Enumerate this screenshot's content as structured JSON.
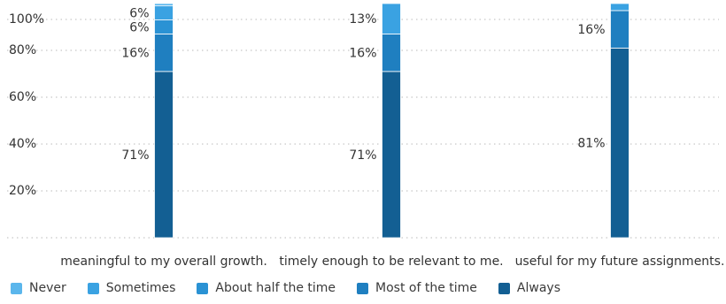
{
  "chart_data": {
    "type": "bar",
    "stacked": true,
    "orientation": "vertical",
    "categories": [
      "meaningful to my overall growth.",
      "timely enough to be relevant to me.",
      "useful for my future assignments."
    ],
    "series": [
      {
        "name": "Always",
        "color": "#135f93",
        "values": [
          71,
          71,
          81
        ]
      },
      {
        "name": "Most of the time",
        "color": "#1f7fc0",
        "values": [
          16,
          16,
          16
        ]
      },
      {
        "name": "About half the time",
        "color": "#2a92d4",
        "values": [
          6,
          0,
          0
        ]
      },
      {
        "name": "Sometimes",
        "color": "#3aa2e2",
        "values": [
          6,
          13,
          3
        ]
      },
      {
        "name": "Never",
        "color": "#5bb6ec",
        "values": [
          1,
          0,
          0
        ]
      }
    ],
    "data_labels": [
      {
        "category": 0,
        "series": "Always",
        "text": "71%"
      },
      {
        "category": 0,
        "series": "Most of the time",
        "text": "16%"
      },
      {
        "category": 0,
        "series": "About half the time",
        "text": "6%"
      },
      {
        "category": 0,
        "series": "Sometimes",
        "text": "6%"
      },
      {
        "category": 1,
        "series": "Always",
        "text": "71%"
      },
      {
        "category": 1,
        "series": "Most of the time",
        "text": "16%"
      },
      {
        "category": 1,
        "series": "Sometimes",
        "text": "13%"
      },
      {
        "category": 2,
        "series": "Always",
        "text": "81%"
      },
      {
        "category": 2,
        "series": "Most of the time",
        "text": "16%"
      }
    ],
    "y_ticks": [
      "20%",
      "40%",
      "60%",
      "80%",
      "100%"
    ],
    "ylim": [
      0,
      100
    ],
    "grid": true,
    "legend_position": "bottom-left",
    "legend": [
      {
        "label": "Never",
        "color": "#5bb6ec"
      },
      {
        "label": "Sometimes",
        "color": "#3aa2e2"
      },
      {
        "label": "About half the time",
        "color": "#2a92d4"
      },
      {
        "label": "Most of the time",
        "color": "#1f7fc0"
      },
      {
        "label": "Always",
        "color": "#135f93"
      }
    ]
  }
}
